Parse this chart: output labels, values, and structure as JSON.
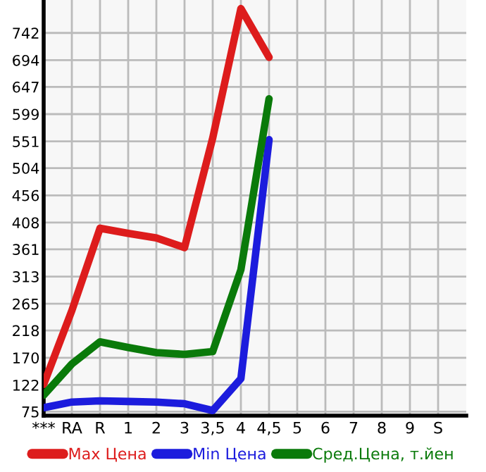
{
  "chart_data": {
    "type": "line",
    "categories": [
      "***",
      "RA",
      "R",
      "1",
      "2",
      "3",
      "3,5",
      "4",
      "4,5",
      "5",
      "6",
      "7",
      "8",
      "9",
      "S"
    ],
    "series": [
      {
        "name": "Max Цена",
        "color": "#dd1c1c",
        "values": [
          123,
          253,
          398,
          389,
          381,
          364,
          557,
          785,
          699,
          null,
          null,
          null,
          null,
          null,
          null
        ]
      },
      {
        "name": "Min Цена",
        "color": "#1c1cdd",
        "values": [
          82,
          92,
          94,
          93,
          92,
          89,
          77,
          133,
          554,
          null,
          null,
          null,
          null,
          null,
          null
        ]
      },
      {
        "name": "Сред.Цена, т.йен",
        "color": "#0a7a0a",
        "values": [
          104,
          159,
          198,
          188,
          179,
          176,
          181,
          325,
          626,
          null,
          null,
          null,
          null,
          null,
          null
        ]
      }
    ],
    "ylim": [
      68,
      800
    ],
    "yticks": [
      75,
      122,
      170,
      218,
      265,
      313,
      361,
      408,
      456,
      504,
      551,
      599,
      647,
      694,
      742
    ],
    "grid": true,
    "legend": "bottom",
    "marker": "none",
    "line_style": "solid"
  }
}
